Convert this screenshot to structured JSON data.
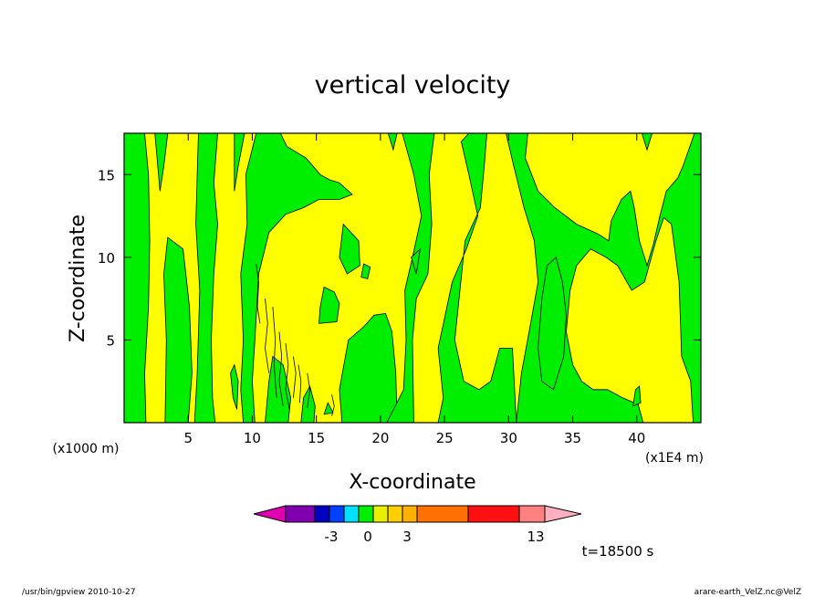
{
  "chart_data": {
    "type": "contour",
    "title": "vertical velocity",
    "xlabel": "X-coordinate",
    "ylabel": "Z-coordinate",
    "x_unit": "(x1E4 m)",
    "y_unit": "(x1000 m)",
    "xlim": [
      0,
      45
    ],
    "ylim": [
      0,
      17.5
    ],
    "x_ticks": [
      5,
      10,
      15,
      20,
      25,
      30,
      35,
      40
    ],
    "y_ticks": [
      5,
      10,
      15
    ],
    "field_classes": {
      "positive": "#ffff00",
      "negative": "#00ee00"
    },
    "colorbar": {
      "colors": [
        "#e000b0",
        "#8000b0",
        "#0000c0",
        "#0040ff",
        "#00e0ff",
        "#00ee00",
        "#e8f000",
        "#ffd000",
        "#ffb000",
        "#ff7000",
        "#ff1010",
        "#ff8080",
        "#ffb0c0"
      ],
      "tick_labels": [
        "-3",
        "0",
        "3",
        "13"
      ]
    },
    "time_label": "t=18500 s"
  },
  "footer": {
    "left": "/usr/bin/gpview   2010-10-27",
    "right": "arare-earth_VelZ.nc@VelZ"
  }
}
